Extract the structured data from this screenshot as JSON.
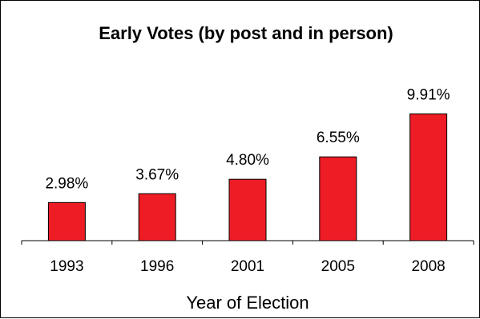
{
  "chart_data": {
    "type": "bar",
    "title": "Early Votes (by post and in person)",
    "xlabel": "Year of Election",
    "ylabel": "",
    "categories": [
      "1993",
      "1996",
      "2001",
      "2005",
      "2008"
    ],
    "values": [
      2.98,
      3.67,
      4.8,
      6.55,
      9.91
    ],
    "data_labels": [
      "2.98%",
      "3.67%",
      "4.80%",
      "6.55%",
      "9.91%"
    ],
    "ylim": [
      0,
      12
    ],
    "grid": false,
    "legend": "none",
    "colors": {
      "bar": "#ee1c25",
      "bar_stroke": "#000000",
      "axis": "#000000"
    }
  }
}
